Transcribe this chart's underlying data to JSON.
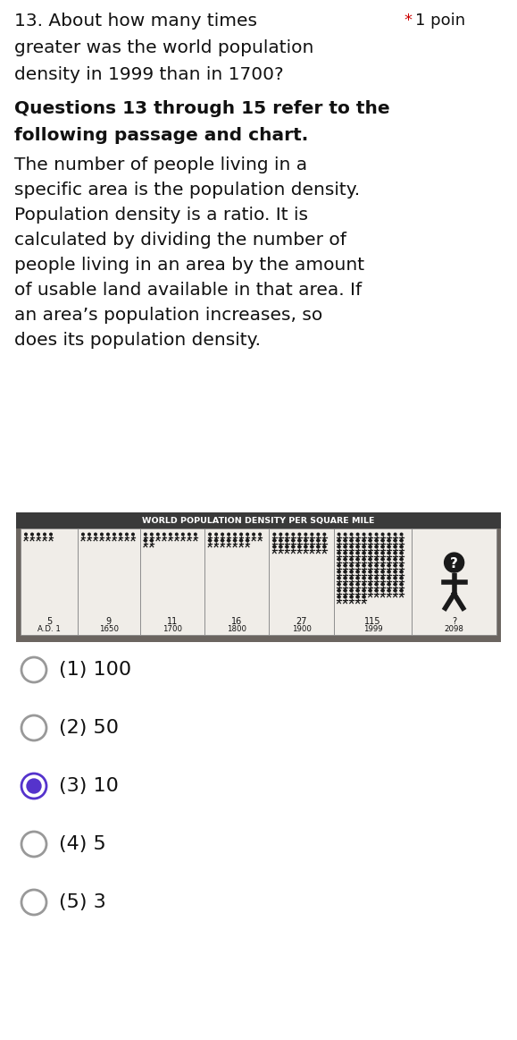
{
  "bg_color": "#ffffff",
  "star_color": "#cc0000",
  "question_line1": "13. About how many times",
  "question_line2": "greater was the world population",
  "question_line3": "density in 1999 than in 1700?",
  "star_label": "* 1 poin",
  "bold_heading_line1": "Questions 13 through 15 refer to the",
  "bold_heading_line2": "following passage and chart.",
  "passage_lines": [
    "The number of people living in a",
    "specific area is the population density.",
    "Population density is a ratio. It is",
    "calculated by dividing the number of",
    "people living in an area by the amount",
    "of usable land available in that area. If",
    "an area’s population increases, so",
    "does its population density."
  ],
  "chart_title": "WORLD POPULATION DENSITY PER SQUARE MILE",
  "chart_years": [
    "A.D. 1",
    "1650",
    "1700",
    "1800",
    "1900",
    "1999",
    "2098"
  ],
  "chart_values": [
    "5",
    "9",
    "11",
    "16",
    "27",
    "115",
    "?"
  ],
  "options": [
    {
      "num": "(1)",
      "val": "100",
      "selected": false
    },
    {
      "num": "(2)",
      "val": "50",
      "selected": false
    },
    {
      "num": "(3)",
      "val": "10",
      "selected": true
    },
    {
      "num": "(4)",
      "val": "5",
      "selected": false
    },
    {
      "num": "(5)",
      "val": "3",
      "selected": false
    }
  ],
  "selected_color": "#5533cc",
  "unselected_color": "#999999",
  "chart_outer_bg": "#6b6560",
  "chart_header_bg": "#3a3a3a",
  "chart_cell_bg": "#f0ede8",
  "chart_border": "#888888",
  "text_color": "#111111"
}
